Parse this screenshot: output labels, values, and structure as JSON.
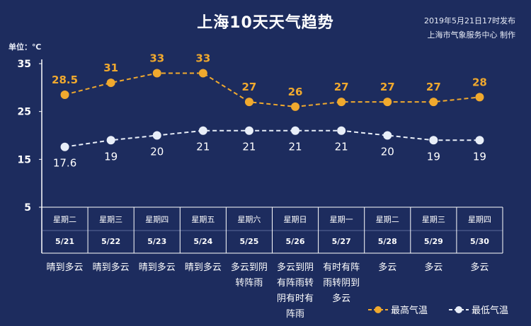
{
  "title": "上海10天天气趋势",
  "publish": {
    "time": "2019年5月21日17时发布",
    "producer": "上海市气象服务中心  制作"
  },
  "unit_label": "单位：℃",
  "colors": {
    "background": "#1d2c5e",
    "high": "#f0a92e",
    "low": "#e8eef8",
    "grid": "#5b6a9a",
    "axis": "#ffffff"
  },
  "days": [
    {
      "weekday": "星期二",
      "date": "5/21",
      "condition": [
        "晴到多云"
      ]
    },
    {
      "weekday": "星期三",
      "date": "5/22",
      "condition": [
        "晴到多云"
      ]
    },
    {
      "weekday": "星期四",
      "date": "5/23",
      "condition": [
        "晴到多云"
      ]
    },
    {
      "weekday": "星期五",
      "date": "5/24",
      "condition": [
        "晴到多云"
      ]
    },
    {
      "weekday": "星期六",
      "date": "5/25",
      "condition": [
        "多云到阴",
        "转阵雨"
      ]
    },
    {
      "weekday": "星期日",
      "date": "5/26",
      "condition": [
        "多云到阴",
        "有阵雨转",
        "阴有时有",
        "阵雨"
      ]
    },
    {
      "weekday": "星期一",
      "date": "5/27",
      "condition": [
        "有时有阵",
        "雨转阴到",
        "多云"
      ]
    },
    {
      "weekday": "星期二",
      "date": "5/28",
      "condition": [
        "多云"
      ]
    },
    {
      "weekday": "星期三",
      "date": "5/29",
      "condition": [
        "多云"
      ]
    },
    {
      "weekday": "星期四",
      "date": "5/30",
      "condition": [
        "多云"
      ]
    }
  ],
  "chart_data": {
    "type": "line",
    "title": "上海10天天气趋势",
    "ylabel": "单位：℃",
    "ylim": [
      5,
      35
    ],
    "yticks": [
      5,
      15,
      25,
      35
    ],
    "categories": [
      "5/21",
      "5/22",
      "5/23",
      "5/24",
      "5/25",
      "5/26",
      "5/27",
      "5/28",
      "5/29",
      "5/30"
    ],
    "series": [
      {
        "name": "最高气温",
        "values": [
          28.5,
          31,
          33,
          33,
          27,
          26,
          27,
          27,
          27,
          28
        ],
        "labels": [
          "28.5",
          "31",
          "33",
          "33",
          "27",
          "26",
          "27",
          "27",
          "27",
          "28"
        ]
      },
      {
        "name": "最低气温",
        "values": [
          17.6,
          19,
          20,
          21,
          21,
          21,
          21,
          20,
          19,
          19
        ],
        "labels": [
          "17.6",
          "19",
          "20",
          "21",
          "21",
          "21",
          "21",
          "20",
          "19",
          "19"
        ]
      }
    ],
    "legend": "bottom-right",
    "grid": false
  }
}
